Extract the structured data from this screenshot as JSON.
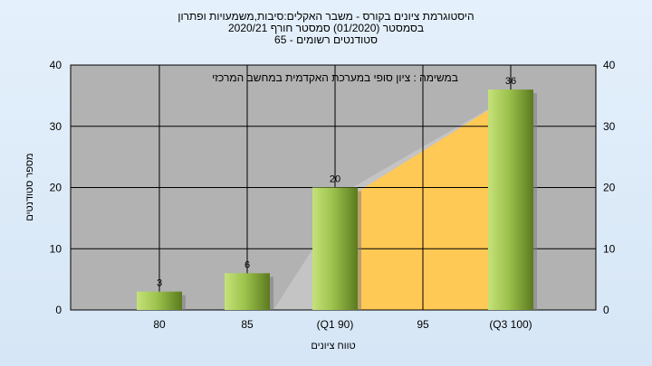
{
  "chart_data": {
    "type": "bar",
    "title_lines": [
      "היסטוגרמת ציונים בקורס - משבר האקלים:סיבות,משמעויות ופתרון",
      "בסמסטר  (01/2020)  סמסטר חורף  2020/21",
      "סטודנטים רשומים - 65"
    ],
    "annotation": "במשימה : ציון סופי במערכת האקדמית במחשב המרכזי",
    "categories": [
      "80",
      "85",
      "(Q1 90)",
      "95",
      "(Q3 100)"
    ],
    "values": [
      3,
      6,
      20,
      0,
      36
    ],
    "data_labels": [
      "3",
      "6",
      "20",
      "",
      "36"
    ],
    "xlabel": "טווח ציונים",
    "ylabel": "מספר סטודנטים",
    "ylim": [
      0,
      40
    ],
    "yticks": [
      0,
      10,
      20,
      30,
      40
    ],
    "grid": true,
    "colors": {
      "plot_background": "#b2b2b2",
      "iqr_fill": "#ffc955",
      "range_fill": "#c4c4c4",
      "bar_light": "#c6e27a",
      "bar_dark": "#5b7a1e",
      "bar_shadow": "#7d7d7d"
    }
  }
}
